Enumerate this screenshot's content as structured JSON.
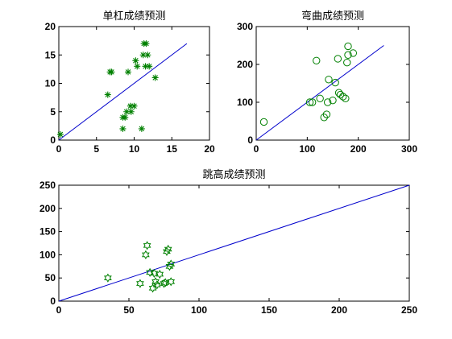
{
  "chart_data": [
    {
      "type": "scatter",
      "title": "单杠成绩预测",
      "xlabel": "",
      "ylabel": "",
      "xlim": [
        0,
        20
      ],
      "ylim": [
        0,
        20
      ],
      "xticks": [
        "0",
        "5",
        "10",
        "15",
        "20"
      ],
      "yticks": [
        "0",
        "5",
        "10",
        "15",
        "20"
      ],
      "marker": "asterisk",
      "marker_color": "#008000",
      "line_color": "#0000cc",
      "line": {
        "x": [
          0,
          17
        ],
        "y": [
          0,
          17
        ]
      },
      "points": {
        "x": [
          0.2,
          6.5,
          6.8,
          7.0,
          8.5,
          8.5,
          8.8,
          9.0,
          9.2,
          9.5,
          9.6,
          10.0,
          10.2,
          10.4,
          11.0,
          11.2,
          11.3,
          11.5,
          11.6,
          11.8,
          12.0,
          12.8
        ],
        "y": [
          1,
          8,
          12,
          12,
          2,
          4,
          4,
          5,
          12,
          6,
          5,
          6,
          14,
          13,
          2,
          15,
          17,
          13,
          17,
          15,
          13,
          11
        ]
      }
    },
    {
      "type": "scatter",
      "title": "弯曲成绩预测",
      "xlabel": "",
      "ylabel": "",
      "xlim": [
        0,
        300
      ],
      "ylim": [
        0,
        300
      ],
      "xticks": [
        "0",
        "100",
        "200",
        "300"
      ],
      "yticks": [
        "0",
        "100",
        "200",
        "300"
      ],
      "marker": "circle",
      "marker_color": "#008000",
      "line_color": "#0000cc",
      "line": {
        "x": [
          0,
          250
        ],
        "y": [
          0,
          250
        ]
      },
      "points": {
        "x": [
          15,
          105,
          110,
          118,
          125,
          133,
          140,
          138,
          142,
          150,
          155,
          160,
          162,
          165,
          170,
          175,
          178,
          180,
          180,
          190
        ],
        "y": [
          48,
          100,
          100,
          210,
          110,
          60,
          100,
          68,
          160,
          105,
          152,
          215,
          125,
          120,
          115,
          110,
          205,
          225,
          248,
          230
        ]
      }
    },
    {
      "type": "scatter",
      "title": "跳高成绩预测",
      "xlabel": "",
      "ylabel": "",
      "xlim": [
        0,
        250
      ],
      "ylim": [
        0,
        250
      ],
      "xticks": [
        "0",
        "50",
        "100",
        "150",
        "200",
        "250"
      ],
      "yticks": [
        "0",
        "50",
        "100",
        "150",
        "200",
        "250"
      ],
      "marker": "hexagram",
      "marker_color": "#008000",
      "line_color": "#0000cc",
      "line": {
        "x": [
          0,
          250
        ],
        "y": [
          0,
          250
        ]
      },
      "points": {
        "x": [
          35,
          58,
          62,
          63,
          65,
          67,
          68,
          69,
          70,
          72,
          75,
          76,
          77,
          78,
          79,
          80,
          80
        ],
        "y": [
          50,
          38,
          100,
          120,
          62,
          28,
          60,
          42,
          35,
          58,
          38,
          40,
          107,
          112,
          75,
          42,
          80
        ]
      }
    }
  ]
}
